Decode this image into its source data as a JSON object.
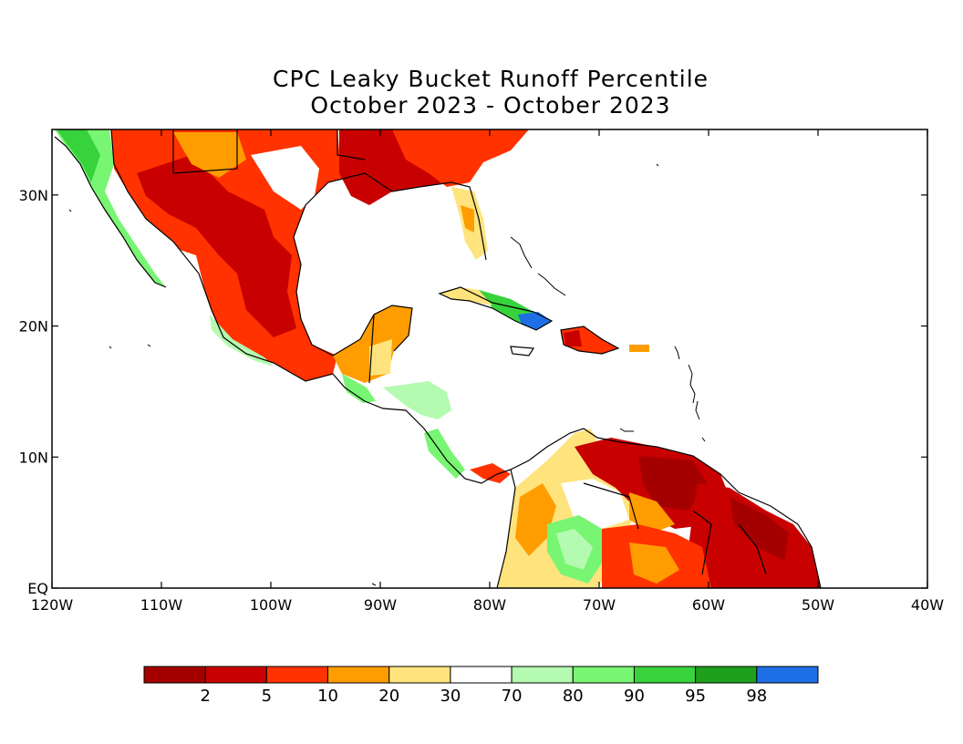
{
  "title_line1": "CPC Leaky Bucket Runoff Percentile",
  "title_line2": "October 2023 - October 2023",
  "map": {
    "lon_range": [
      -120,
      -40
    ],
    "lat_range": [
      0,
      35
    ],
    "x_ticks": [
      "120W",
      "110W",
      "100W",
      "90W",
      "80W",
      "70W",
      "60W",
      "50W",
      "40W"
    ],
    "x_tick_values": [
      -120,
      -110,
      -100,
      -90,
      -80,
      -70,
      -60,
      -50,
      -40
    ],
    "y_ticks": [
      "EQ",
      "10N",
      "20N",
      "30N"
    ],
    "y_tick_values": [
      0,
      10,
      20,
      30
    ]
  },
  "colorbar": {
    "colors": [
      "#a50000",
      "#c80000",
      "#ff3200",
      "#ff9d00",
      "#ffe47d",
      "#ffffff",
      "#b4fab0",
      "#78f573",
      "#37d23c",
      "#1ea01e",
      "#1e6ee6"
    ],
    "labels": [
      "2",
      "5",
      "10",
      "20",
      "30",
      "70",
      "80",
      "90",
      "95",
      "98"
    ]
  },
  "colors": {
    "very_dry": "#a50000",
    "dry": "#c80000",
    "moderate_dry": "#ff3200",
    "abnormal_dry": "#ff9d00",
    "slight_dry": "#ffe47d",
    "normal": "#ffffff",
    "slight_wet": "#b4fab0",
    "wet": "#78f573",
    "very_wet": "#37d23c",
    "extreme_wet": "#1ea01e",
    "exceptional_wet": "#1e6ee6"
  }
}
